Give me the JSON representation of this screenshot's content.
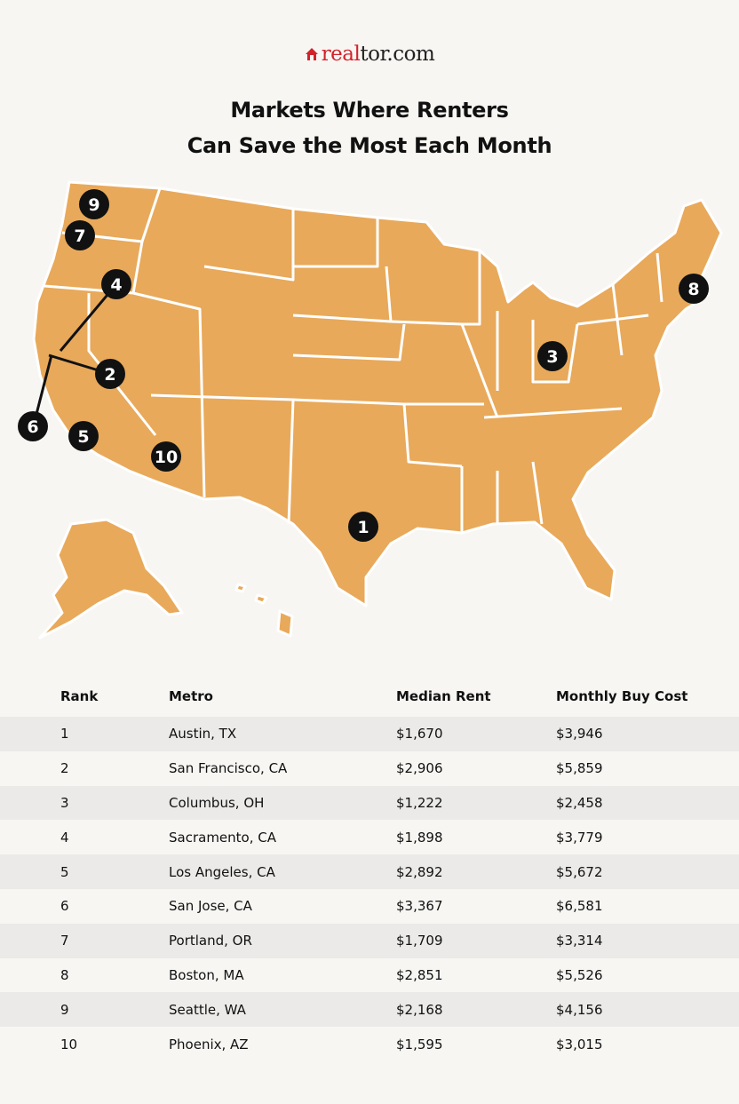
{
  "logo": {
    "brand_part1": "real",
    "brand_part2": "tor.com",
    "icon": "house-icon",
    "brand_color": "#d2232a"
  },
  "title": {
    "line1": "Markets Where Renters",
    "line2": "Can Save the Most Each Month"
  },
  "map": {
    "fill_color": "#e8a95a",
    "marker_color": "#111111",
    "markers": [
      {
        "label": "1",
        "metro": "Austin, TX"
      },
      {
        "label": "2",
        "metro": "San Francisco, CA"
      },
      {
        "label": "3",
        "metro": "Columbus, OH"
      },
      {
        "label": "4",
        "metro": "Sacramento, CA"
      },
      {
        "label": "5",
        "metro": "Los Angeles, CA"
      },
      {
        "label": "6",
        "metro": "San Jose, CA"
      },
      {
        "label": "7",
        "metro": "Portland, OR"
      },
      {
        "label": "8",
        "metro": "Boston, MA"
      },
      {
        "label": "9",
        "metro": "Seattle, WA"
      },
      {
        "label": "10",
        "metro": "Phoenix, AZ"
      }
    ]
  },
  "table": {
    "headers": [
      "Rank",
      "Metro",
      "Median Rent",
      "Monthly Buy Cost"
    ],
    "rows": [
      [
        "1",
        "Austin, TX",
        "$1,670",
        "$3,946"
      ],
      [
        "2",
        "San Francisco, CA",
        "$2,906",
        "$5,859"
      ],
      [
        "3",
        "Columbus, OH",
        "$1,222",
        "$2,458"
      ],
      [
        "4",
        "Sacramento, CA",
        "$1,898",
        "$3,779"
      ],
      [
        "5",
        "Los Angeles, CA",
        "$2,892",
        "$5,672"
      ],
      [
        "6",
        "San Jose, CA",
        "$3,367",
        "$6,581"
      ],
      [
        "7",
        "Portland, OR",
        "$1,709",
        "$3,314"
      ],
      [
        "8",
        "Boston, MA",
        "$2,851",
        "$5,526"
      ],
      [
        "9",
        "Seattle, WA",
        "$2,168",
        "$4,156"
      ],
      [
        "10",
        "Phoenix, AZ",
        "$1,595",
        "$3,015"
      ]
    ]
  }
}
